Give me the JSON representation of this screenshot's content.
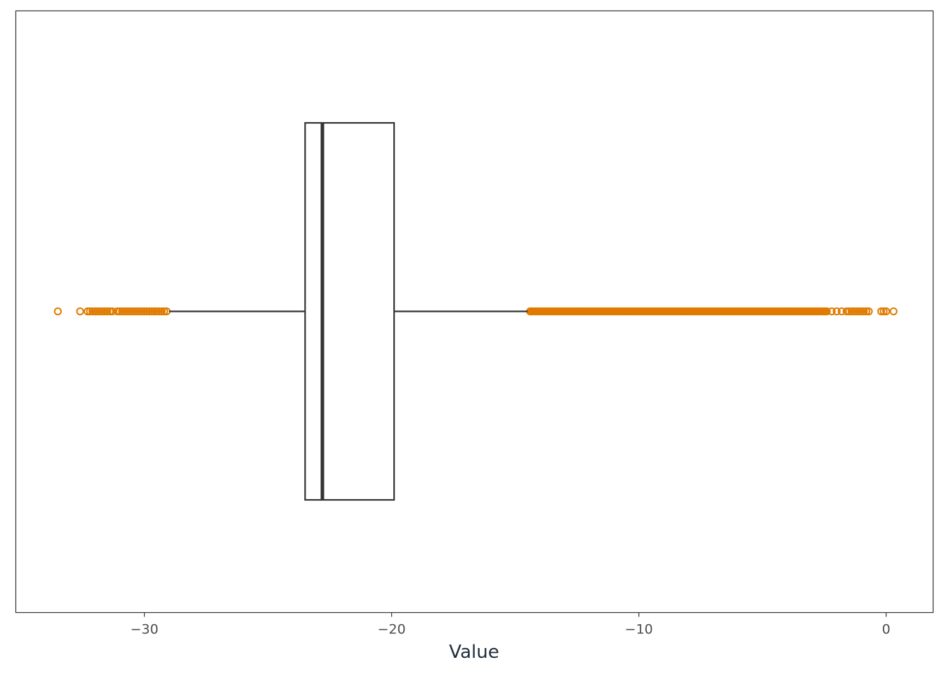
{
  "chart_data": {
    "type": "boxplot",
    "orientation": "horizontal",
    "title": "",
    "xlabel": "Value",
    "ylabel": "",
    "xlim": [
      -35.2,
      1.9
    ],
    "x_ticks": [
      -30,
      -20,
      -10,
      0
    ],
    "x_tick_labels": [
      "−30",
      "−20",
      "−10",
      "0"
    ],
    "grid": false,
    "box": {
      "q1": -23.5,
      "median": -22.8,
      "q3": -19.9,
      "whisker_low": -29.0,
      "whisker_high": -14.5
    },
    "outliers_low": [
      -33.5,
      -32.6,
      -32.3,
      -32.2,
      -32.1,
      -32.0,
      -31.9,
      -31.8,
      -31.7,
      -31.6,
      -31.5,
      -31.4,
      -31.3,
      -31.1,
      -31.0,
      -30.9,
      -30.8,
      -30.7,
      -30.6,
      -30.5,
      -30.4,
      -30.3,
      -30.2,
      -30.1,
      -30.0,
      -29.9,
      -29.8,
      -29.7,
      -29.6,
      -29.5,
      -29.4,
      -29.3,
      -29.2,
      -29.1
    ],
    "outliers_high_dense_range": [
      -14.4,
      -2.4
    ],
    "outliers_high_sparse": [
      -2.2,
      -2.0,
      -1.8,
      -1.6,
      -1.5,
      -1.4,
      -1.3,
      -1.2,
      -1.1,
      -1.0,
      -0.9,
      -0.8,
      -0.7,
      -0.2,
      -0.1,
      0.0,
      0.3
    ],
    "colors": {
      "box": "#333333",
      "outlier": "#E07B00",
      "axis_text": "#4d4d4d",
      "axis_title": "#1f2d3d"
    }
  }
}
